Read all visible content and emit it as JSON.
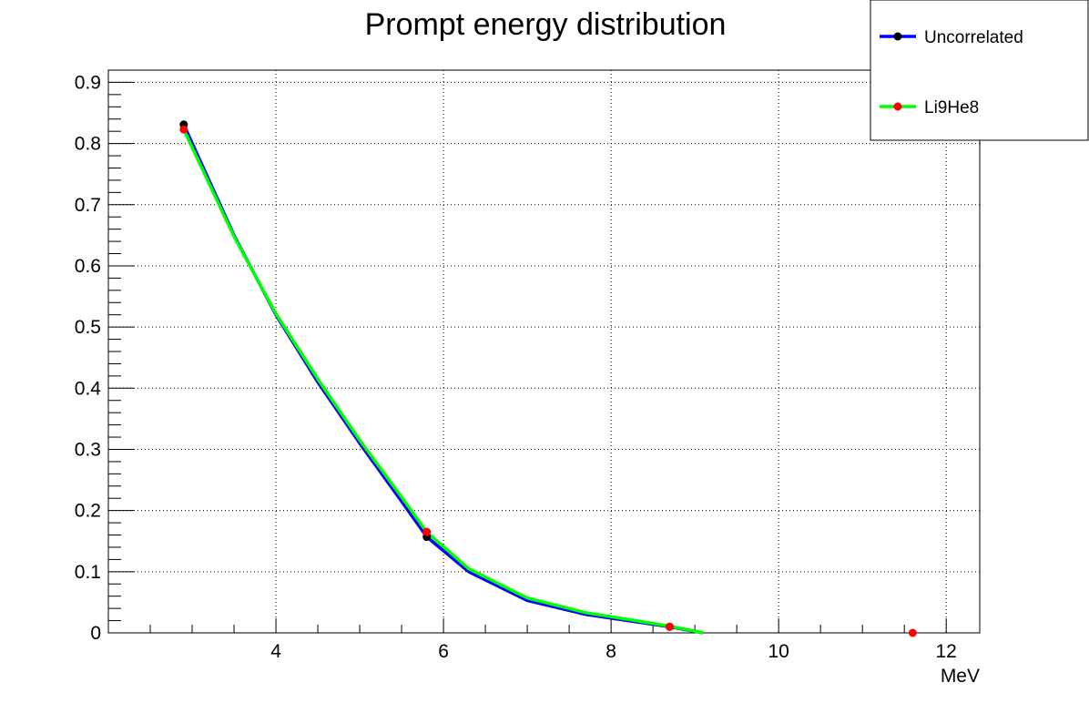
{
  "chart_data": {
    "type": "line",
    "title": "Prompt energy distribution",
    "xlabel": "MeV",
    "ylabel": "",
    "xlim": [
      2.0,
      12.4
    ],
    "ylim": [
      0,
      0.92
    ],
    "xticks": [
      4,
      6,
      8,
      10,
      12
    ],
    "xtick_labels": [
      "4",
      "6",
      "8",
      "10",
      "12"
    ],
    "yticks": [
      0,
      0.1,
      0.2,
      0.3,
      0.4,
      0.5,
      0.6,
      0.7,
      0.8,
      0.9
    ],
    "ytick_labels": [
      "0",
      "0.1",
      "0.2",
      "0.3",
      "0.4",
      "0.5",
      "0.6",
      "0.7",
      "0.8",
      "0.9"
    ],
    "grid": true,
    "legend_position": "top-right",
    "series": [
      {
        "name": "Uncorrelated",
        "color": "#0000ff",
        "marker_color": "#000000",
        "points": [
          {
            "x": 2.9,
            "y": 0.831
          },
          {
            "x": 5.8,
            "y": 0.157
          },
          {
            "x": 8.7,
            "y": 0.01
          }
        ],
        "curve": [
          {
            "x": 2.9,
            "y": 0.831
          },
          {
            "x": 3.5,
            "y": 0.65
          },
          {
            "x": 4.0,
            "y": 0.52
          },
          {
            "x": 4.5,
            "y": 0.41
          },
          {
            "x": 5.0,
            "y": 0.31
          },
          {
            "x": 5.5,
            "y": 0.215
          },
          {
            "x": 5.8,
            "y": 0.157
          },
          {
            "x": 6.3,
            "y": 0.1
          },
          {
            "x": 7.0,
            "y": 0.053
          },
          {
            "x": 7.7,
            "y": 0.03
          },
          {
            "x": 8.3,
            "y": 0.018
          },
          {
            "x": 8.7,
            "y": 0.01
          },
          {
            "x": 9.1,
            "y": 0.0
          }
        ]
      },
      {
        "name": "Li9He8",
        "color": "#00ff00",
        "marker_color": "#ff0000",
        "points": [
          {
            "x": 2.9,
            "y": 0.823
          },
          {
            "x": 5.8,
            "y": 0.165
          },
          {
            "x": 8.7,
            "y": 0.01
          },
          {
            "x": 11.6,
            "y": 0.0
          }
        ],
        "curve": [
          {
            "x": 2.9,
            "y": 0.823
          },
          {
            "x": 3.5,
            "y": 0.648
          },
          {
            "x": 4.0,
            "y": 0.522
          },
          {
            "x": 4.5,
            "y": 0.415
          },
          {
            "x": 5.0,
            "y": 0.315
          },
          {
            "x": 5.5,
            "y": 0.222
          },
          {
            "x": 5.8,
            "y": 0.165
          },
          {
            "x": 6.3,
            "y": 0.105
          },
          {
            "x": 7.0,
            "y": 0.057
          },
          {
            "x": 7.7,
            "y": 0.033
          },
          {
            "x": 8.3,
            "y": 0.02
          },
          {
            "x": 8.7,
            "y": 0.011
          },
          {
            "x": 9.1,
            "y": 0.0
          }
        ]
      }
    ]
  }
}
